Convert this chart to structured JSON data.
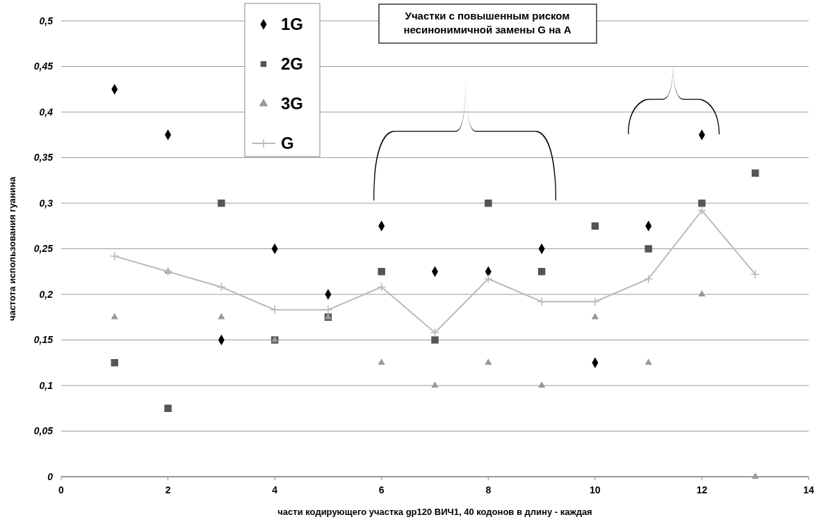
{
  "chart_data": {
    "type": "scatter",
    "xlabel": "части кодирующего участка gp120 ВИЧ1, 40 кодонов в длину - каждая",
    "ylabel": "частота использования гуанина",
    "annotations": [
      "Участки с повышенным риском\nнесинонимичной замены G на A"
    ],
    "x": [
      1,
      2,
      3,
      4,
      5,
      6,
      7,
      8,
      9,
      10,
      11,
      12,
      13
    ],
    "series": [
      {
        "name": "1G",
        "color": "#000000",
        "marker": "diamond",
        "values": [
          0.425,
          0.375,
          0.15,
          0.25,
          0.2,
          0.275,
          0.225,
          0.225,
          0.25,
          0.125,
          0.275,
          0.375,
          null
        ]
      },
      {
        "name": "2G",
        "color": "#555555",
        "marker": "square",
        "values": [
          0.125,
          0.075,
          0.3,
          0.15,
          0.175,
          0.225,
          0.15,
          0.3,
          0.225,
          0.275,
          0.25,
          0.3,
          0.333
        ]
      },
      {
        "name": "3G",
        "color": "#999999",
        "marker": "triangle",
        "values": [
          0.175,
          0.225,
          0.175,
          0.15,
          0.175,
          0.125,
          0.1,
          0.125,
          0.1,
          0.175,
          0.125,
          0.2,
          0
        ]
      },
      {
        "name": "G",
        "type": "line",
        "color": "#bbbbbb",
        "marker": "cross",
        "values": [
          0.242,
          0.225,
          0.208,
          0.183,
          0.183,
          0.208,
          0.158,
          0.217,
          0.192,
          0.192,
          0.217,
          0.292,
          0.222
        ]
      }
    ],
    "xlim": [
      0,
      14
    ],
    "xticks": [
      0,
      2,
      4,
      6,
      8,
      10,
      12,
      14
    ],
    "ylim": [
      0,
      0.5
    ],
    "yticks": [
      {
        "value": 0,
        "label": "0"
      },
      {
        "value": 0.05,
        "label": "0,05"
      },
      {
        "value": 0.1,
        "label": "0,1"
      },
      {
        "value": 0.15,
        "label": "0,15"
      },
      {
        "value": 0.2,
        "label": "0,2"
      },
      {
        "value": 0.25,
        "label": "0,25"
      },
      {
        "value": 0.3,
        "label": "0,3"
      },
      {
        "value": 0.35,
        "label": "0,35"
      },
      {
        "value": 0.4,
        "label": "0,4"
      },
      {
        "value": 0.45,
        "label": "0,45"
      },
      {
        "value": 0.5,
        "label": "0,5"
      }
    ],
    "grid": "y",
    "legend": "top left"
  }
}
